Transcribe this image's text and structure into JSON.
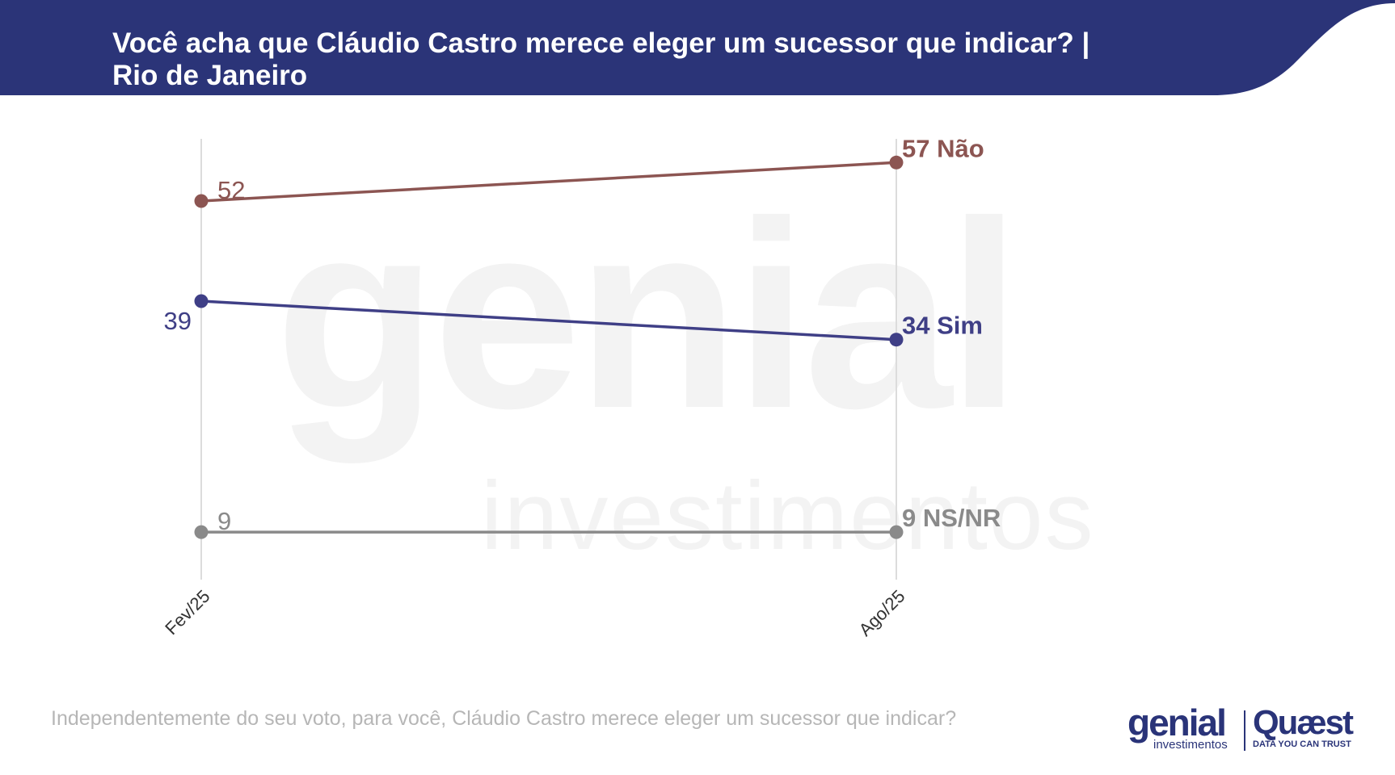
{
  "title_lines": [
    "Você acha que Cláudio Castro merece eleger um sucessor que indicar? |",
    "Rio de Janeiro"
  ],
  "footnote": "Independentemente do seu voto, para você, Cláudio Castro merece eleger um sucessor que indicar?",
  "watermark": {
    "main": "genial",
    "sub": "investimentos"
  },
  "logos": {
    "genial": {
      "name": "genial",
      "sub": "investimentos"
    },
    "quaest": {
      "name": "Quæst",
      "sub": "DATA YOU CAN TRUST"
    }
  },
  "colors": {
    "header": "#2b3478",
    "nao": "#8c5552",
    "sim": "#3f3f86",
    "nsnr": "#8a8a8a",
    "gridline": "#dcdcdc"
  },
  "chart_data": {
    "type": "line",
    "x": [
      "Fev/25",
      "Ago/25"
    ],
    "series": [
      {
        "name": "Não",
        "values": [
          52,
          57
        ],
        "color": "#8c5552"
      },
      {
        "name": "Sim",
        "values": [
          39,
          34
        ],
        "color": "#3f3f86"
      },
      {
        "name": "NS/NR",
        "values": [
          9,
          9
        ],
        "color": "#8a8a8a"
      }
    ],
    "ylim": [
      0,
      65
    ],
    "grid": "vertical"
  }
}
